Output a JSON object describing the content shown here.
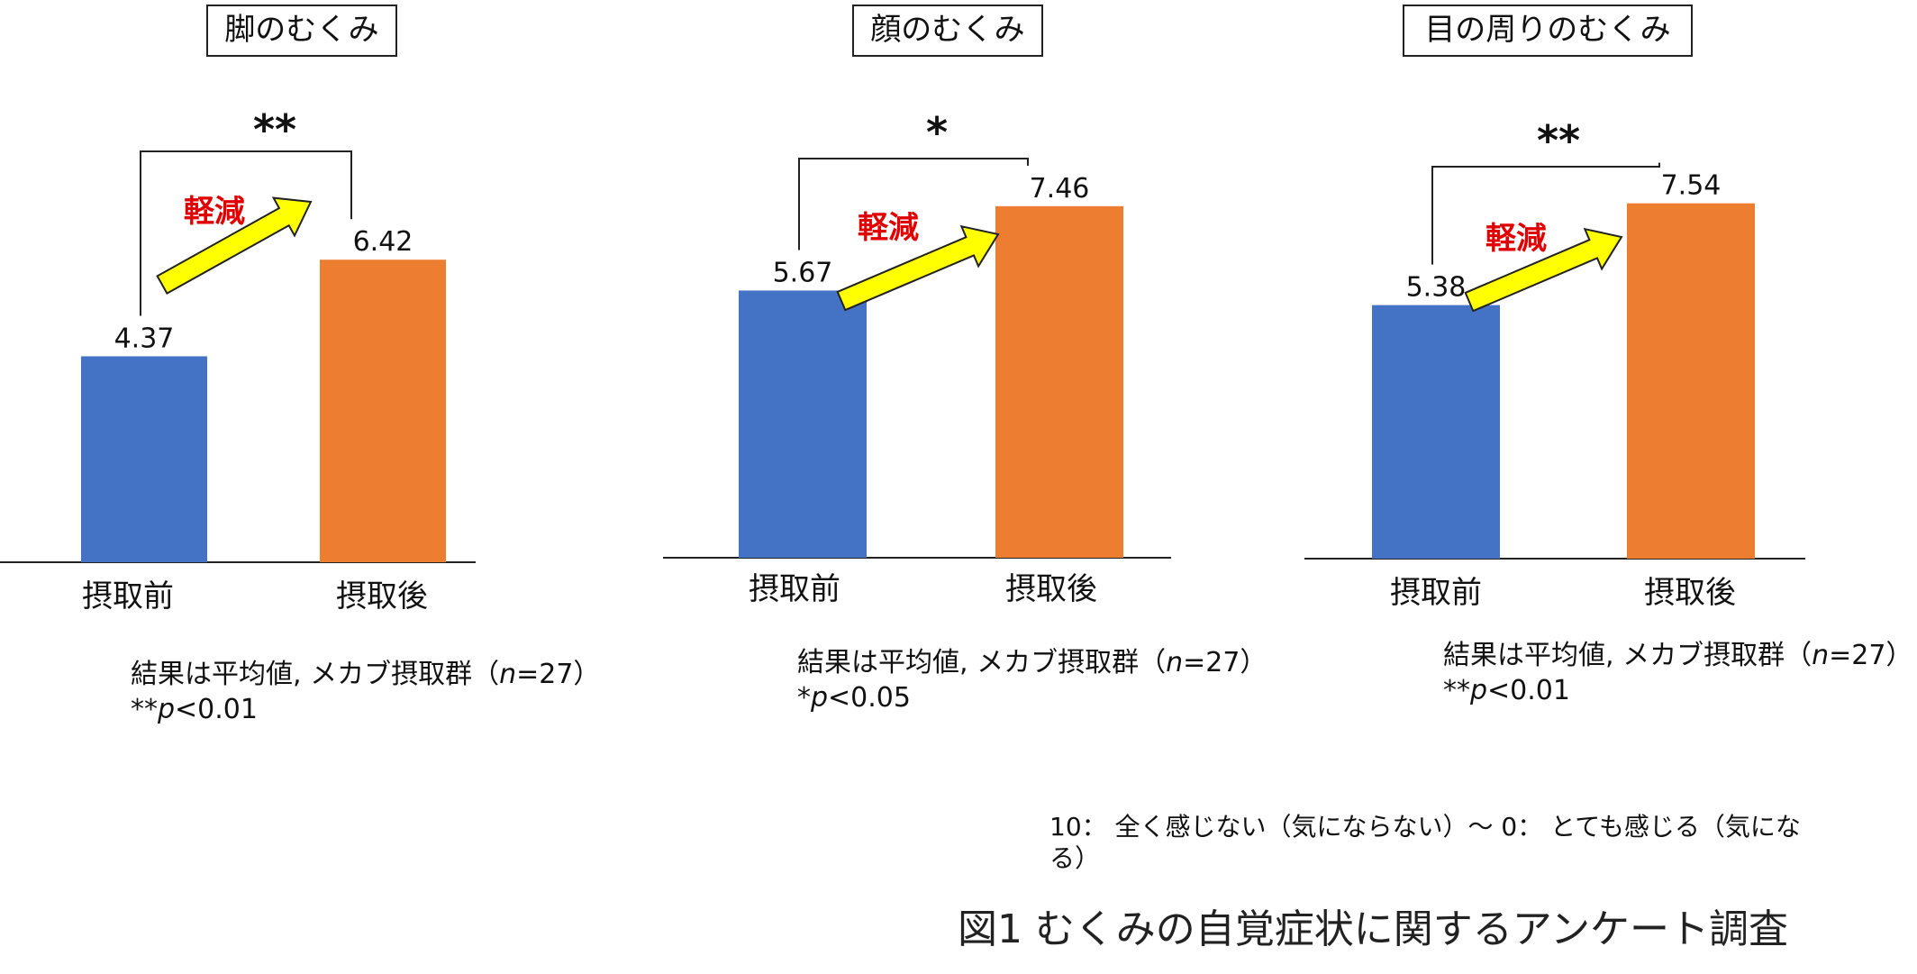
{
  "chart_data": [
    {
      "type": "bar",
      "title": "脚のむくみ",
      "categories": [
        "摂取前",
        "摂取後"
      ],
      "values": [
        4.37,
        6.42
      ],
      "value_labels": [
        "4.37",
        "6.42"
      ],
      "colors": [
        "#4472C4",
        "#ED7D31"
      ],
      "significance": "**",
      "effect_label": "軽減",
      "note_line1_prefix": "結果は平均値, メカブ摂取群（",
      "note_n": "n",
      "note_line1_suffix": "=27）",
      "note_line2_prefix": "**",
      "note_p": "p",
      "note_line2_suffix": "<0.01"
    },
    {
      "type": "bar",
      "title": "顔のむくみ",
      "categories": [
        "摂取前",
        "摂取後"
      ],
      "values": [
        5.67,
        7.46
      ],
      "value_labels": [
        "5.67",
        "7.46"
      ],
      "colors": [
        "#4472C4",
        "#ED7D31"
      ],
      "significance": "*",
      "effect_label": "軽減",
      "note_line1_prefix": "結果は平均値, メカブ摂取群（",
      "note_n": "n",
      "note_line1_suffix": "=27）",
      "note_line2_prefix": "*",
      "note_p": "p",
      "note_line2_suffix": "<0.05"
    },
    {
      "type": "bar",
      "title": "目の周りのむくみ",
      "categories": [
        "摂取前",
        "摂取後"
      ],
      "values": [
        5.38,
        7.54
      ],
      "value_labels": [
        "5.38",
        "7.54"
      ],
      "colors": [
        "#4472C4",
        "#ED7D31"
      ],
      "significance": "**",
      "effect_label": "軽減",
      "note_line1_prefix": "結果は平均値, メカブ摂取群（",
      "note_n": "n",
      "note_line1_suffix": "=27）",
      "note_line2_prefix": "**",
      "note_p": "p",
      "note_line2_suffix": "<0.01"
    }
  ],
  "scale_note_line1": "10： 全く感じない（気にならない）～ 0： とても感じる（気にな",
  "scale_note_line2": "る）",
  "caption": "図1 むくみの自覚症状に関するアンケート調査",
  "colors": {
    "arrow_fill": "#FFFF00",
    "arrow_stroke": "#222222",
    "effect_text": "#E00000"
  }
}
